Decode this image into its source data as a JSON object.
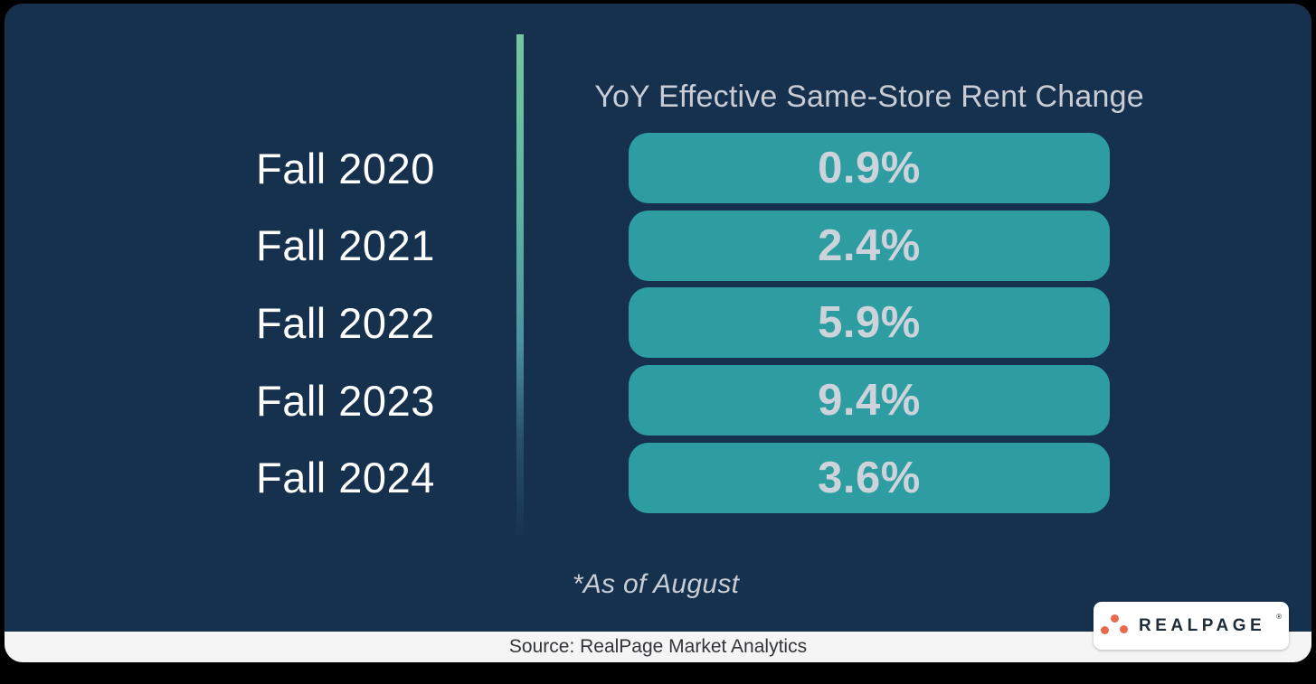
{
  "chart_data": {
    "type": "bar",
    "orientation": "horizontal",
    "title": "YoY Effective Same-Store Rent Change",
    "categories": [
      "Fall 2020",
      "Fall 2021",
      "Fall 2022",
      "Fall 2023",
      "Fall 2024"
    ],
    "values": [
      0.9,
      2.4,
      5.9,
      9.4,
      3.6
    ],
    "value_labels": [
      "0.9%",
      "2.4%",
      "5.9%",
      "9.4%",
      "3.6%"
    ],
    "footnote": "*As of August",
    "xlabel": "",
    "ylabel": "",
    "legend": "none",
    "grid": false,
    "bar_color": "#2D9DA2",
    "value_text_color": "#CDD3DB",
    "category_text_color": "#FFFFFF",
    "title_color": "#C7CCD5",
    "background_color": "#16314D",
    "accent_gradient_top": "#74C79D",
    "accent_gradient_bottom": "#4C93A0"
  },
  "footer": {
    "source": "Source: RealPage Market Analytics",
    "background": "#F5F5F6"
  },
  "logo": {
    "text": "REALPAGE",
    "trademark": "®",
    "dot_color": "#E96A4B",
    "text_color": "#1F2D38"
  }
}
